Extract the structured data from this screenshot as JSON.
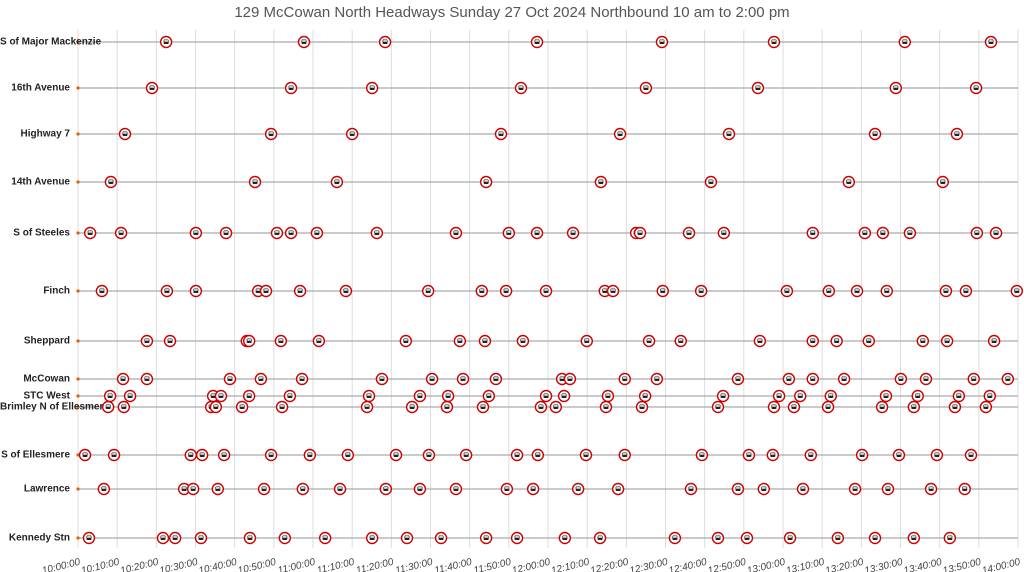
{
  "chart_data": {
    "type": "timeline",
    "title": "129 McCowan North Headways Sunday 27 Oct 2024 Northbound 10 am to 2:00 pm",
    "xlim": [
      600,
      840
    ],
    "xticks": [
      {
        "value": 600,
        "label": "10:00:00"
      },
      {
        "value": 610,
        "label": "10:10:00"
      },
      {
        "value": 620,
        "label": "10:20:00"
      },
      {
        "value": 630,
        "label": "10:30:00"
      },
      {
        "value": 640,
        "label": "10:40:00"
      },
      {
        "value": 650,
        "label": "10:50:00"
      },
      {
        "value": 660,
        "label": "11:00:00"
      },
      {
        "value": 670,
        "label": "11:10:00"
      },
      {
        "value": 680,
        "label": "11:20:00"
      },
      {
        "value": 690,
        "label": "11:30:00"
      },
      {
        "value": 700,
        "label": "11:40:00"
      },
      {
        "value": 710,
        "label": "11:50:00"
      },
      {
        "value": 720,
        "label": "12:00:00"
      },
      {
        "value": 730,
        "label": "12:10:00"
      },
      {
        "value": 740,
        "label": "12:20:00"
      },
      {
        "value": 750,
        "label": "12:30:00"
      },
      {
        "value": 760,
        "label": "12:40:00"
      },
      {
        "value": 770,
        "label": "12:50:00"
      },
      {
        "value": 780,
        "label": "13:00:00"
      },
      {
        "value": 790,
        "label": "13:10:00"
      },
      {
        "value": 800,
        "label": "13:20:00"
      },
      {
        "value": 810,
        "label": "13:30:00"
      },
      {
        "value": 820,
        "label": "13:40:00"
      },
      {
        "value": 830,
        "label": "13:50:00"
      },
      {
        "value": 840,
        "label": "14:00:00"
      }
    ],
    "grid": true,
    "color": "#cc0000",
    "series": [
      {
        "name": "S of Major Mackenzie",
        "x": [
          622.5,
          657.7,
          678.4,
          717.2,
          749.1,
          777.7,
          811.1,
          833.1
        ]
      },
      {
        "name": "16th Avenue",
        "x": [
          618.9,
          654.4,
          675.1,
          713.1,
          745.0,
          773.6,
          808.8,
          829.3
        ]
      },
      {
        "name": "Highway 7",
        "x": [
          612.0,
          649.3,
          670.0,
          708.0,
          738.4,
          766.2,
          803.5,
          824.4
        ]
      },
      {
        "name": "14th Avenue",
        "x": [
          608.4,
          645.2,
          666.1,
          704.2,
          733.5,
          761.6,
          796.8,
          820.8
        ]
      },
      {
        "name": "S of Steeles",
        "x": [
          603.1,
          611.0,
          630.1,
          637.8,
          650.8,
          654.4,
          661.0,
          676.3,
          696.5,
          710.0,
          717.2,
          726.4,
          742.5,
          743.5,
          756.0,
          764.9,
          787.6,
          800.9,
          805.5,
          812.4,
          829.5,
          834.4
        ]
      },
      {
        "name": "Finch",
        "x": [
          606.1,
          622.7,
          630.1,
          646.0,
          648.0,
          656.7,
          668.4,
          689.4,
          703.1,
          709.3,
          719.5,
          734.5,
          736.6,
          749.3,
          759.1,
          781.0,
          791.7,
          798.9,
          806.5,
          821.6,
          826.7,
          839.7
        ]
      },
      {
        "name": "Sheppard",
        "x": [
          617.6,
          623.5,
          643.1,
          643.7,
          651.8,
          661.5,
          683.7,
          697.5,
          703.9,
          713.6,
          729.9,
          745.8,
          753.9,
          774.1,
          787.6,
          793.7,
          801.9,
          815.7,
          821.9,
          833.9
        ]
      },
      {
        "name": "McCowan",
        "x": [
          611.5,
          617.6,
          638.8,
          646.7,
          657.2,
          677.6,
          690.4,
          698.3,
          706.7,
          723.6,
          725.6,
          739.6,
          747.8,
          768.5,
          781.5,
          787.6,
          795.6,
          810.1,
          816.5,
          828.7,
          837.4
        ]
      },
      {
        "name": "STC West",
        "x": [
          608.2,
          613.3,
          634.5,
          636.5,
          643.7,
          654.1,
          674.3,
          687.3,
          694.5,
          704.9,
          719.5,
          724.1,
          735.3,
          744.8,
          764.7,
          779.0,
          784.4,
          792.2,
          806.3,
          814.4,
          824.9,
          832.8
        ]
      },
      {
        "name": "Brimley N of Ellesmere",
        "x": [
          607.7,
          611.7,
          634.0,
          635.2,
          641.9,
          652.1,
          673.8,
          685.3,
          694.2,
          703.4,
          718.2,
          722.0,
          734.8,
          744.0,
          763.4,
          777.7,
          782.8,
          791.5,
          805.3,
          813.4,
          823.9,
          831.8
        ]
      },
      {
        "name": "S of Ellesmere",
        "x": [
          601.8,
          609.2,
          628.8,
          631.7,
          637.3,
          649.3,
          659.2,
          668.9,
          681.2,
          689.6,
          699.1,
          712.1,
          717.4,
          729.7,
          739.6,
          759.3,
          771.3,
          777.4,
          787.1,
          800.2,
          809.6,
          819.3,
          828.0
        ]
      },
      {
        "name": "Lawrence",
        "x": [
          606.6,
          627.1,
          629.4,
          635.7,
          647.5,
          657.4,
          666.9,
          678.6,
          687.3,
          696.5,
          709.5,
          716.2,
          727.7,
          737.9,
          756.5,
          768.5,
          775.1,
          785.1,
          798.4,
          806.8,
          817.8,
          826.4
        ]
      },
      {
        "name": "Kennedy Stn",
        "x": [
          602.8,
          621.7,
          624.8,
          631.4,
          643.9,
          652.8,
          663.1,
          675.1,
          684.0,
          692.7,
          704.2,
          712.1,
          724.3,
          733.3,
          752.4,
          763.4,
          770.8,
          781.8,
          794.0,
          803.5,
          813.4,
          822.6
        ]
      }
    ]
  }
}
